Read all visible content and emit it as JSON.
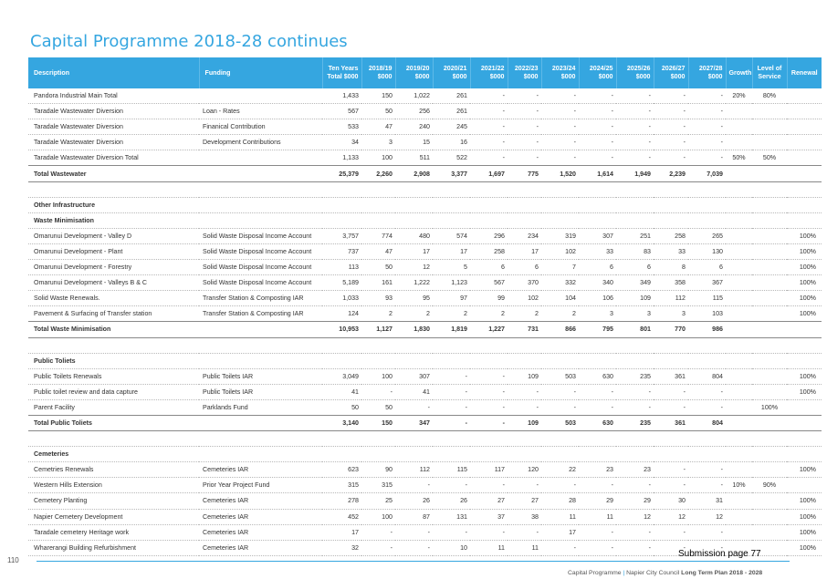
{
  "title": "Capital Programme 2018-28 continues",
  "header": {
    "description": "Description",
    "funding": "Funding",
    "ten_years": "Ten Years Total $000",
    "years": [
      "2018/19 $000",
      "2019/20 $000",
      "2020/21 $000",
      "2021/22 $000",
      "2022/23 $000",
      "2023/24 $000",
      "2024/25 $000",
      "2025/26 $000",
      "2026/27 $000",
      "2027/28 $000"
    ],
    "growth": "Growth",
    "level_of_service": "Level of Service",
    "renewal": "Renewal"
  },
  "rows": [
    {
      "type": "data",
      "desc": "Pandora Industrial Main Total",
      "funding": "",
      "total": "1,433",
      "years": [
        "150",
        "1,022",
        "261",
        "-",
        "-",
        "-",
        "-",
        "-",
        "-",
        "-"
      ],
      "growth": "20%",
      "los": "80%",
      "renewal": ""
    },
    {
      "type": "data",
      "desc": "Taradale Wastewater Diversion",
      "funding": "Loan - Rates",
      "total": "567",
      "years": [
        "50",
        "256",
        "261",
        "-",
        "-",
        "-",
        "-",
        "-",
        "-",
        "-"
      ],
      "growth": "",
      "los": "",
      "renewal": ""
    },
    {
      "type": "data",
      "desc": "Taradale Wastewater Diversion",
      "funding": "Finanical Contribution",
      "total": "533",
      "years": [
        "47",
        "240",
        "245",
        "-",
        "-",
        "-",
        "-",
        "-",
        "-",
        "-"
      ],
      "growth": "",
      "los": "",
      "renewal": ""
    },
    {
      "type": "data",
      "desc": "Taradale Wastewater Diversion",
      "funding": "Development Contributions",
      "total": "34",
      "years": [
        "3",
        "15",
        "16",
        "-",
        "-",
        "-",
        "-",
        "-",
        "-",
        "-"
      ],
      "growth": "",
      "los": "",
      "renewal": ""
    },
    {
      "type": "data",
      "desc": "Taradale Wastewater Diversion Total",
      "funding": "",
      "total": "1,133",
      "years": [
        "100",
        "511",
        "522",
        "-",
        "-",
        "-",
        "-",
        "-",
        "-",
        "-"
      ],
      "growth": "50%",
      "los": "50%",
      "renewal": ""
    },
    {
      "type": "total",
      "desc": "Total Wastewater",
      "funding": "",
      "total": "25,379",
      "years": [
        "2,260",
        "2,908",
        "3,377",
        "1,697",
        "775",
        "1,520",
        "1,614",
        "1,949",
        "2,239",
        "7,039"
      ],
      "growth": "",
      "los": "",
      "renewal": ""
    },
    {
      "type": "empty"
    },
    {
      "type": "section",
      "desc": "Other Infrastructure"
    },
    {
      "type": "sub",
      "desc": "Waste Minimisation"
    },
    {
      "type": "data",
      "desc": "Omarunui Development - Valley D",
      "funding": "Solid Waste Disposal Income Account",
      "total": "3,757",
      "years": [
        "774",
        "480",
        "574",
        "296",
        "234",
        "319",
        "307",
        "251",
        "258",
        "265"
      ],
      "growth": "",
      "los": "",
      "renewal": "100%"
    },
    {
      "type": "data",
      "desc": "Omarunui Development - Plant",
      "funding": "Solid Waste Disposal Income Account",
      "total": "737",
      "years": [
        "47",
        "17",
        "17",
        "258",
        "17",
        "102",
        "33",
        "83",
        "33",
        "130"
      ],
      "growth": "",
      "los": "",
      "renewal": "100%"
    },
    {
      "type": "data",
      "desc": "Omarunui Development - Forestry",
      "funding": "Solid Waste Disposal Income Account",
      "total": "113",
      "years": [
        "50",
        "12",
        "5",
        "6",
        "6",
        "7",
        "6",
        "6",
        "8",
        "6"
      ],
      "growth": "",
      "los": "",
      "renewal": "100%"
    },
    {
      "type": "data",
      "desc": "Omarunui Development - Valleys B & C",
      "funding": "Solid Waste Disposal Income Account",
      "total": "5,189",
      "years": [
        "161",
        "1,222",
        "1,123",
        "567",
        "370",
        "332",
        "340",
        "349",
        "358",
        "367"
      ],
      "growth": "",
      "los": "",
      "renewal": "100%"
    },
    {
      "type": "data",
      "desc": "Solid Waste Renewals.",
      "funding": "Transfer Station & Composting IAR",
      "total": "1,033",
      "years": [
        "93",
        "95",
        "97",
        "99",
        "102",
        "104",
        "106",
        "109",
        "112",
        "115"
      ],
      "growth": "",
      "los": "",
      "renewal": "100%"
    },
    {
      "type": "data",
      "desc": "Pavement & Surfacing of Transfer station",
      "funding": "Transfer Station & Composting IAR",
      "total": "124",
      "years": [
        "2",
        "2",
        "2",
        "2",
        "2",
        "2",
        "3",
        "3",
        "3",
        "103"
      ],
      "growth": "",
      "los": "",
      "renewal": "100%"
    },
    {
      "type": "total",
      "desc": "Total Waste Minimisation",
      "funding": "",
      "total": "10,953",
      "years": [
        "1,127",
        "1,830",
        "1,819",
        "1,227",
        "731",
        "866",
        "795",
        "801",
        "770",
        "986"
      ],
      "growth": "",
      "los": "",
      "renewal": ""
    },
    {
      "type": "empty"
    },
    {
      "type": "section",
      "desc": "Public Toliets"
    },
    {
      "type": "data",
      "desc": "Public Toilets Renewals",
      "funding": "Public Toilets IAR",
      "total": "3,049",
      "years": [
        "100",
        "307",
        "-",
        "-",
        "109",
        "503",
        "630",
        "235",
        "361",
        "804"
      ],
      "growth": "",
      "los": "",
      "renewal": "100%"
    },
    {
      "type": "data",
      "desc": "Public toilet review and data capture",
      "funding": "Public Toilets IAR",
      "total": "41",
      "years": [
        "-",
        "41",
        "-",
        "-",
        "-",
        "-",
        "-",
        "-",
        "-",
        "-"
      ],
      "growth": "",
      "los": "",
      "renewal": "100%"
    },
    {
      "type": "data",
      "desc": "Parent Facility",
      "funding": "Parklands Fund",
      "total": "50",
      "years": [
        "50",
        "-",
        "-",
        "-",
        "-",
        "-",
        "-",
        "-",
        "-",
        "-"
      ],
      "growth": "",
      "los": "100%",
      "renewal": ""
    },
    {
      "type": "total",
      "desc": "Total Public Toliets",
      "funding": "",
      "total": "3,140",
      "years": [
        "150",
        "347",
        "-",
        "-",
        "109",
        "503",
        "630",
        "235",
        "361",
        "804"
      ],
      "growth": "",
      "los": "",
      "renewal": ""
    },
    {
      "type": "empty"
    },
    {
      "type": "section",
      "desc": "Cemeteries"
    },
    {
      "type": "data",
      "desc": "Cemetries Renewals",
      "funding": "Cemeteries IAR",
      "total": "623",
      "years": [
        "90",
        "112",
        "115",
        "117",
        "120",
        "22",
        "23",
        "23",
        "-",
        "-"
      ],
      "growth": "",
      "los": "",
      "renewal": "100%"
    },
    {
      "type": "data",
      "desc": "Western Hills Extension",
      "funding": "Prior Year Project Fund",
      "total": "315",
      "years": [
        "315",
        "-",
        "-",
        "-",
        "-",
        "-",
        "-",
        "-",
        "-",
        "-"
      ],
      "growth": "10%",
      "los": "90%",
      "renewal": ""
    },
    {
      "type": "data",
      "desc": "Cemetery Planting",
      "funding": "Cemeteries IAR",
      "total": "278",
      "years": [
        "25",
        "26",
        "26",
        "27",
        "27",
        "28",
        "29",
        "29",
        "30",
        "31"
      ],
      "growth": "",
      "los": "",
      "renewal": "100%"
    },
    {
      "type": "data",
      "desc": "Napier Cemetery Development",
      "funding": "Cemeteries IAR",
      "total": "452",
      "years": [
        "100",
        "87",
        "131",
        "37",
        "38",
        "11",
        "11",
        "12",
        "12",
        "12"
      ],
      "growth": "",
      "los": "",
      "renewal": "100%"
    },
    {
      "type": "data",
      "desc": "Taradale cemetery Heritage work",
      "funding": "Cemeteries IAR",
      "total": "17",
      "years": [
        "-",
        "-",
        "-",
        "-",
        "-",
        "17",
        "-",
        "-",
        "-",
        "-"
      ],
      "growth": "",
      "los": "",
      "renewal": "100%"
    },
    {
      "type": "data",
      "desc": "Wharerangi Building Refurbishment",
      "funding": "Cemeteries IAR",
      "total": "32",
      "years": [
        "-",
        "-",
        "10",
        "11",
        "11",
        "-",
        "-",
        "-",
        "-",
        "-"
      ],
      "growth": "",
      "los": "",
      "renewal": "100%"
    }
  ],
  "page_number": "110",
  "submission": "Submission page 77",
  "footer": {
    "section": "Capital Programme",
    "separator": "|",
    "council": "Napier City Council",
    "plan": "Long Term Plan 2018 - 2028"
  }
}
